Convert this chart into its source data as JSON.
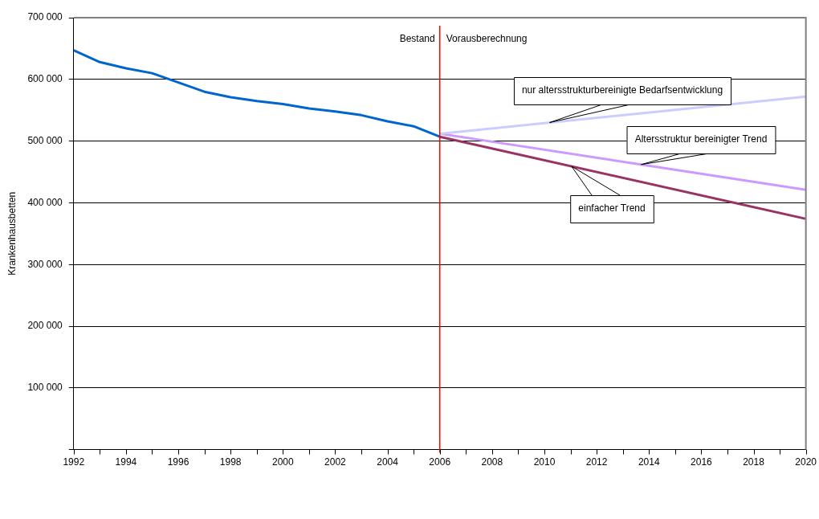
{
  "chart_data": {
    "type": "line",
    "ylabel": "Krankenhausbetten",
    "series": [
      {
        "color": "#0066cc",
        "x": [
          1992,
          1993,
          1994,
          1995,
          1996,
          1997,
          1998,
          1999,
          2000,
          2001,
          2002,
          2003,
          2004,
          2005,
          2006
        ],
        "values": [
          647000,
          628000,
          618000,
          610000,
          595000,
          580000,
          571000,
          565000,
          560000,
          553000,
          548000,
          542000,
          532000,
          524000,
          507000
        ]
      },
      {
        "name": "nur altersstrukturbereinigte Bedarfsentwicklung",
        "color": "#ccccff",
        "x": [
          2006,
          2020
        ],
        "values": [
          512000,
          572000
        ]
      },
      {
        "name": "Altersstruktur bereinigter Trend",
        "color": "#cc99ff",
        "x": [
          2006,
          2020
        ],
        "values": [
          512000,
          421000
        ]
      },
      {
        "name": "einfacher Trend",
        "color": "#993366",
        "x": [
          2006,
          2020
        ],
        "values": [
          507000,
          374000
        ]
      }
    ],
    "xlim": [
      1992,
      2020
    ],
    "xticks": [
      1992,
      {
        "value": 1993,
        "label": null
      },
      1994,
      {
        "value": 1995,
        "label": null
      },
      1996,
      {
        "value": 1997,
        "label": null
      },
      1998,
      {
        "value": 1999,
        "label": null
      },
      2000,
      {
        "value": 2001,
        "label": null
      },
      2002,
      {
        "value": 2003,
        "label": null
      },
      2004,
      {
        "value": 2005,
        "label": null
      },
      2006,
      {
        "value": 2007,
        "label": null
      },
      2008,
      {
        "value": 2009,
        "label": null
      },
      2010,
      {
        "value": 2011,
        "label": null
      },
      2012,
      {
        "value": 2013,
        "label": null
      },
      2014,
      {
        "value": 2015,
        "label": null
      },
      2016,
      {
        "value": 2017,
        "label": null
      },
      2018,
      {
        "value": 2019,
        "label": null
      },
      2020
    ],
    "ylim": [
      0,
      700000
    ],
    "yticks": [
      {
        "value": 0,
        "label": null
      },
      {
        "value": 100000,
        "label": "100 000"
      },
      {
        "value": 200000,
        "label": "200 000"
      },
      {
        "value": 300000,
        "label": "300 000"
      },
      {
        "value": 400000,
        "label": "400 000"
      },
      {
        "value": 500000,
        "label": "500 000"
      },
      {
        "value": 600000,
        "label": "600 000"
      },
      {
        "value": 700000,
        "label": "700 000"
      }
    ],
    "grid": "y",
    "legend": false,
    "marker": "none",
    "line_style": "solid",
    "ref_lines": [
      {
        "axis": "x",
        "value": 2006,
        "color": "#ff0000"
      }
    ],
    "annotations": [
      "Bestand",
      "Vorausberechnung"
    ]
  }
}
